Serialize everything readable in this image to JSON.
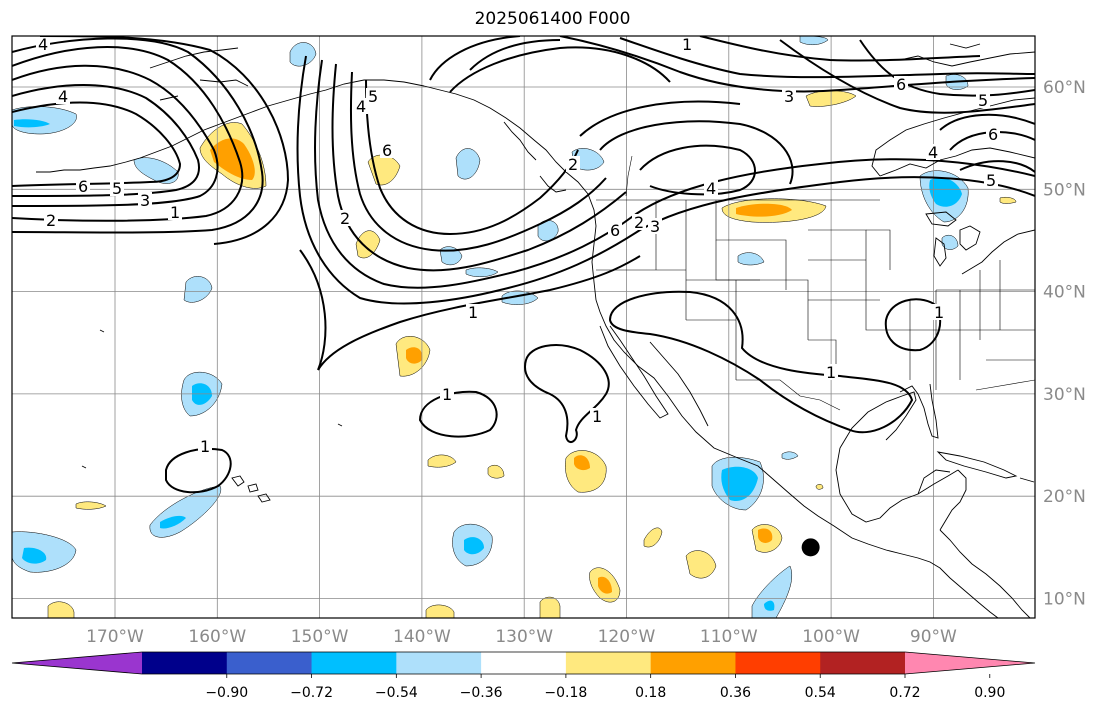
{
  "title": "2025061400 F000",
  "map": {
    "longitude_labels": [
      "170°W",
      "160°W",
      "150°W",
      "140°W",
      "130°W",
      "120°W",
      "110°W",
      "100°W",
      "90°W"
    ],
    "latitude_labels": [
      "60°N",
      "50°N",
      "40°N",
      "30°N",
      "20°N",
      "10°N"
    ],
    "contour_labels": [
      "1",
      "2",
      "3",
      "4",
      "5",
      "6"
    ],
    "colors": {
      "contour": "#000000",
      "gridline": "#8a8a8a",
      "coastline": "#000000"
    },
    "marker": {
      "type": "filled-circle",
      "lon": -102,
      "lat": 15,
      "color": "#000000"
    }
  },
  "colorbar": {
    "tick_labels": [
      "−0.90",
      "−0.72",
      "−0.54",
      "−0.36",
      "−0.18",
      "0.18",
      "0.36",
      "0.54",
      "0.72",
      "0.90"
    ],
    "colors": [
      "#9a35cf",
      "#00008b",
      "#3a5fcd",
      "#00bfff",
      "#aee0fb",
      "#ffffff",
      "#ffe97f",
      "#ffa000",
      "#ff3e00",
      "#b22222",
      "#ff87b0"
    ],
    "extend": "both"
  }
}
